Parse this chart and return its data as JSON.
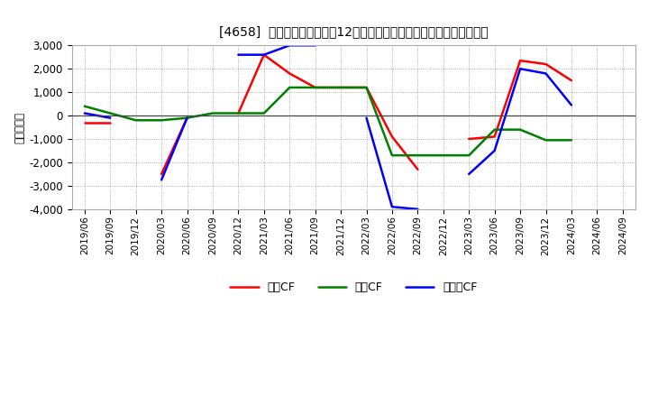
{
  "title": "[4658]  キャッシュフローの12か月移動合計の対前年同期増減額の推移",
  "ylabel": "（百万円）",
  "x_labels": [
    "2019/06",
    "2019/09",
    "2019/12",
    "2020/03",
    "2020/06",
    "2020/09",
    "2020/12",
    "2021/03",
    "2021/06",
    "2021/09",
    "2021/12",
    "2022/03",
    "2022/06",
    "2022/09",
    "2022/12",
    "2023/03",
    "2023/06",
    "2023/09",
    "2023/12",
    "2024/03",
    "2024/06",
    "2024/09"
  ],
  "op_cf": {
    "0": -300,
    "1": -300,
    "3": -2500,
    "4": -100,
    "6": 100,
    "7": 2600,
    "8": 1800,
    "9": 1200,
    "10": 1200,
    "11": 1200,
    "12": -900,
    "13": -2300,
    "15": -1000,
    "16": -900,
    "17": 2350,
    "18": 2200,
    "19": 1500
  },
  "inv_cf": {
    "0": 400,
    "1": 100,
    "2": -200,
    "3": -200,
    "4": -100,
    "5": 100,
    "6": 100,
    "7": 100,
    "8": 1200,
    "9": 1200,
    "10": 1200,
    "11": 1200,
    "12": -1700,
    "13": -1700,
    "14": -1700,
    "15": -1700,
    "16": -600,
    "17": -600,
    "18": -1050,
    "19": -1050
  },
  "free_cf": {
    "0": 100,
    "1": -100,
    "3": -2750,
    "4": -100,
    "6": 2600,
    "7": 2600,
    "8": 3000,
    "9": 3000,
    "11": -100,
    "12": -3900,
    "13": -4000,
    "15": -2500,
    "16": -1500,
    "17": 2000,
    "18": 1800,
    "19": 450
  },
  "ylim": [
    -4000,
    3000
  ],
  "yticks": [
    -4000,
    -3000,
    -2000,
    -1000,
    0,
    1000,
    2000,
    3000
  ],
  "bg_color": "#ffffff",
  "grid_color": "#999999",
  "op_color": "#ff0000",
  "inv_color": "#008000",
  "free_color": "#0000ff",
  "op_label": "営業CF",
  "inv_label": "投資CF",
  "free_label": "フリーCF",
  "linewidth": 1.8
}
